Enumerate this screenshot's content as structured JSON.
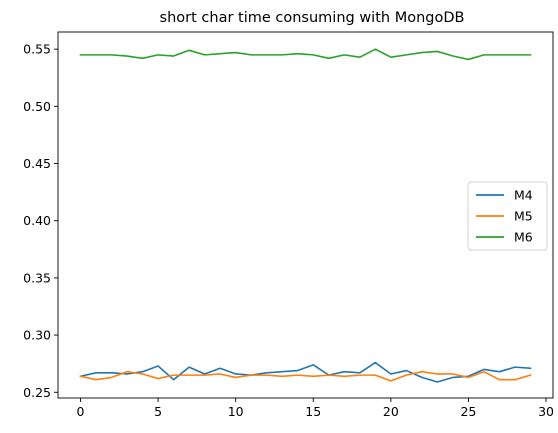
{
  "chart_data": {
    "type": "line",
    "title": "short char time consuming with MongoDB",
    "xlabel": "",
    "ylabel": "",
    "xlim": [
      -1.45,
      30.45
    ],
    "ylim": [
      0.245,
      0.565
    ],
    "xticks": [
      0,
      5,
      10,
      15,
      20,
      25,
      30
    ],
    "yticks": [
      0.25,
      0.3,
      0.35,
      0.4,
      0.45,
      0.5,
      0.55
    ],
    "ytick_labels": [
      "0.25",
      "0.30",
      "0.35",
      "0.40",
      "0.45",
      "0.50",
      "0.55"
    ],
    "grid": false,
    "legend_position": "center-right",
    "x": [
      0,
      1,
      2,
      3,
      4,
      5,
      6,
      7,
      8,
      9,
      10,
      11,
      12,
      13,
      14,
      15,
      16,
      17,
      18,
      19,
      20,
      21,
      22,
      23,
      24,
      25,
      26,
      27,
      28,
      29
    ],
    "series": [
      {
        "name": "M4",
        "color": "#1f77b4",
        "values": [
          0.264,
          0.267,
          0.267,
          0.266,
          0.268,
          0.273,
          0.261,
          0.272,
          0.266,
          0.271,
          0.266,
          0.265,
          0.267,
          0.268,
          0.269,
          0.274,
          0.265,
          0.268,
          0.267,
          0.276,
          0.266,
          0.269,
          0.263,
          0.259,
          0.263,
          0.264,
          0.27,
          0.268,
          0.272,
          0.271
        ]
      },
      {
        "name": "M5",
        "color": "#ff7f0e",
        "values": [
          0.264,
          0.261,
          0.263,
          0.268,
          0.266,
          0.262,
          0.265,
          0.265,
          0.265,
          0.266,
          0.263,
          0.265,
          0.265,
          0.264,
          0.265,
          0.264,
          0.265,
          0.264,
          0.265,
          0.265,
          0.26,
          0.265,
          0.268,
          0.266,
          0.266,
          0.263,
          0.268,
          0.261,
          0.261,
          0.265
        ]
      },
      {
        "name": "M6",
        "color": "#2ca02c",
        "values": [
          0.545,
          0.545,
          0.545,
          0.544,
          0.542,
          0.545,
          0.544,
          0.549,
          0.545,
          0.546,
          0.547,
          0.545,
          0.545,
          0.545,
          0.546,
          0.545,
          0.542,
          0.545,
          0.543,
          0.55,
          0.543,
          0.545,
          0.547,
          0.548,
          0.544,
          0.541,
          0.545,
          0.545,
          0.545,
          0.545
        ]
      }
    ]
  }
}
